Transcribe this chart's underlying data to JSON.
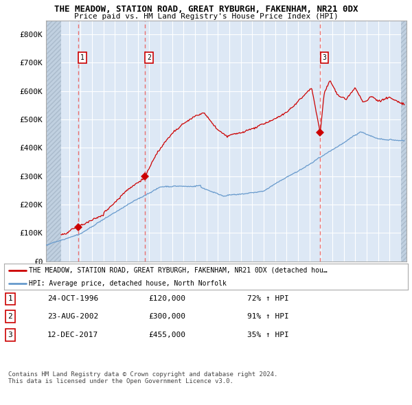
{
  "title": "THE MEADOW, STATION ROAD, GREAT RYBURGH, FAKENHAM, NR21 0DX",
  "subtitle": "Price paid vs. HM Land Registry's House Price Index (HPI)",
  "background_color": "#ffffff",
  "plot_bg_color": "#dde8f5",
  "grid_color": "#ffffff",
  "hatch_color": "#c0d0e0",
  "ylim": [
    0,
    850000
  ],
  "xlim_start": 1994.0,
  "xlim_end": 2025.5,
  "yticks": [
    0,
    100000,
    200000,
    300000,
    400000,
    500000,
    600000,
    700000,
    800000
  ],
  "ytick_labels": [
    "£0",
    "£100K",
    "£200K",
    "£300K",
    "£400K",
    "£500K",
    "£600K",
    "£700K",
    "£800K"
  ],
  "sale_dates": [
    1996.81,
    2002.64,
    2017.95
  ],
  "sale_prices": [
    120000,
    300000,
    455000
  ],
  "sale_labels": [
    "1",
    "2",
    "3"
  ],
  "sale_date_strs": [
    "24-OCT-1996",
    "23-AUG-2002",
    "12-DEC-2017"
  ],
  "sale_price_strs": [
    "£120,000",
    "£300,000",
    "£455,000"
  ],
  "sale_hpi_strs": [
    "72% ↑ HPI",
    "91% ↑ HPI",
    "35% ↑ HPI"
  ],
  "legend_line1": "THE MEADOW, STATION ROAD, GREAT RYBURGH, FAKENHAM, NR21 0DX (detached hou…",
  "legend_line2": "HPI: Average price, detached house, North Norfolk",
  "footer1": "Contains HM Land Registry data © Crown copyright and database right 2024.",
  "footer2": "This data is licensed under the Open Government Licence v3.0.",
  "red_line_color": "#cc0000",
  "blue_line_color": "#6699cc",
  "marker_color": "#cc0000",
  "dashed_line_color": "#e87070"
}
